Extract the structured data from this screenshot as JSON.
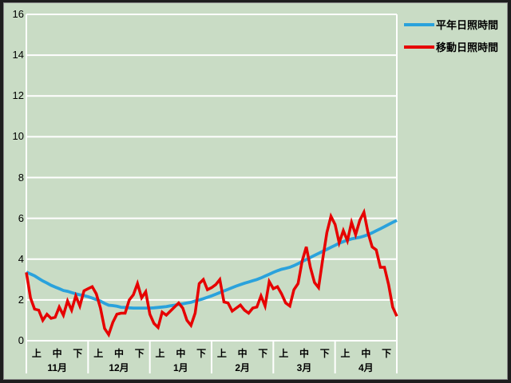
{
  "window": {
    "type": "static sunshine-duration chart panel",
    "background_color": "#c9dcc5",
    "gridline_color": "#ffffff",
    "text_color": "#000000",
    "frame_color": "#1e1e1e"
  },
  "legend": {
    "position": "top-right",
    "items": [
      {
        "label": "平年日照時間",
        "color": "#2aa2dc"
      },
      {
        "label": "移動日照時間",
        "color": "#e60000"
      }
    ]
  },
  "axes": {
    "y_tick_labels": [
      "0",
      "2",
      "4",
      "6",
      "8",
      "10",
      "12",
      "14",
      "16"
    ],
    "y_min": 0,
    "y_max": 16,
    "y_step": 2,
    "month_labels": [
      "11月",
      "12月",
      "1月",
      "2月",
      "3月",
      "4月"
    ],
    "period_labels": [
      "上",
      "中",
      "下"
    ]
  },
  "chart_data": {
    "type": "line",
    "title": "",
    "xlabel": "",
    "ylabel": "",
    "ylim": [
      0,
      16
    ],
    "grid": "horizontal white gridlines every 2 units",
    "legend_position": "top-right",
    "categories": [
      "11月",
      "12月",
      "1月",
      "2月",
      "3月",
      "4月"
    ],
    "x_subdivisions_per_month": [
      "上",
      "中",
      "下"
    ],
    "sampling": "values sampled every 2 days from start of 11月 to end of 4月 (91 points, evenly spaced)",
    "series": [
      {
        "name": "平年日照時間",
        "color": "#2aa2dc",
        "values": [
          3.37,
          3.27,
          3.18,
          3.05,
          2.93,
          2.83,
          2.72,
          2.63,
          2.55,
          2.46,
          2.42,
          2.36,
          2.3,
          2.25,
          2.21,
          2.16,
          2.09,
          2.02,
          1.94,
          1.83,
          1.74,
          1.72,
          1.69,
          1.64,
          1.63,
          1.61,
          1.6,
          1.6,
          1.6,
          1.6,
          1.6,
          1.61,
          1.63,
          1.65,
          1.67,
          1.71,
          1.74,
          1.78,
          1.81,
          1.85,
          1.88,
          1.95,
          2.0,
          2.06,
          2.13,
          2.2,
          2.28,
          2.36,
          2.44,
          2.52,
          2.6,
          2.68,
          2.75,
          2.82,
          2.88,
          2.94,
          3.0,
          3.08,
          3.17,
          3.26,
          3.35,
          3.43,
          3.5,
          3.55,
          3.6,
          3.68,
          3.78,
          3.88,
          3.98,
          4.08,
          4.18,
          4.28,
          4.38,
          4.48,
          4.58,
          4.68,
          4.78,
          4.86,
          4.93,
          4.99,
          5.03,
          5.07,
          5.13,
          5.2,
          5.29,
          5.39,
          5.49,
          5.59,
          5.7,
          5.8,
          5.9
        ]
      },
      {
        "name": "移動日照時間",
        "color": "#e60000",
        "values": [
          3.35,
          2.1,
          1.55,
          1.5,
          1.0,
          1.3,
          1.1,
          1.15,
          1.65,
          1.25,
          1.95,
          1.5,
          2.2,
          1.7,
          2.45,
          2.55,
          2.65,
          2.3,
          1.6,
          0.6,
          0.3,
          0.9,
          1.3,
          1.35,
          1.35,
          2.0,
          2.25,
          2.8,
          2.1,
          2.4,
          1.3,
          0.85,
          0.65,
          1.4,
          1.25,
          1.45,
          1.65,
          1.85,
          1.6,
          1.0,
          0.75,
          1.35,
          2.8,
          3.0,
          2.5,
          2.6,
          2.75,
          3.0,
          1.9,
          1.85,
          1.45,
          1.6,
          1.75,
          1.5,
          1.35,
          1.6,
          1.65,
          2.2,
          1.7,
          2.9,
          2.55,
          2.65,
          2.3,
          1.85,
          1.7,
          2.5,
          2.8,
          3.9,
          4.6,
          3.6,
          2.85,
          2.6,
          4.0,
          5.3,
          6.1,
          5.7,
          4.8,
          5.4,
          4.9,
          5.8,
          5.2,
          5.9,
          6.3,
          5.3,
          4.6,
          4.45,
          3.6,
          3.6,
          2.75,
          1.65,
          1.2
        ]
      }
    ]
  }
}
